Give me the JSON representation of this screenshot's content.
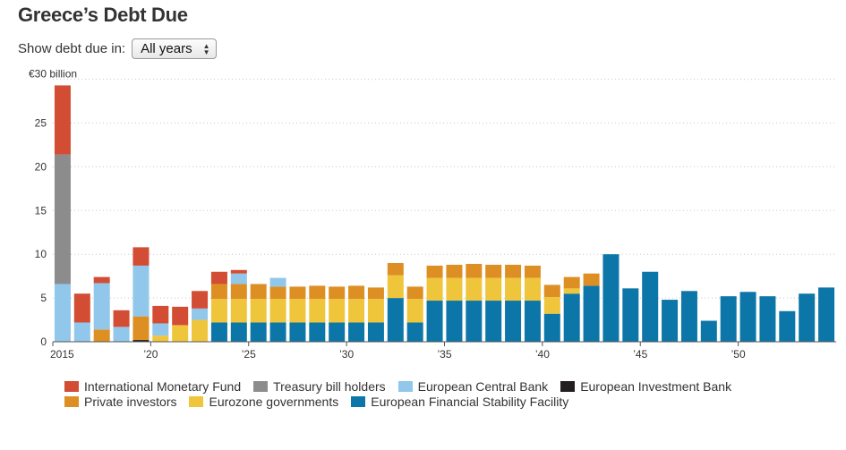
{
  "header": {
    "title": "Greece’s Debt Due"
  },
  "controls": {
    "label": "Show debt due in:",
    "selected": "All years"
  },
  "chart_data": {
    "type": "bar",
    "stacked": true,
    "title": "Greece’s Debt Due",
    "xlabel": "",
    "ylabel": "",
    "y_top_label": "€30 billion",
    "ylim": [
      0,
      30
    ],
    "yticks": [
      0,
      5,
      10,
      15,
      20,
      25
    ],
    "grid": true,
    "legend_position": "bottom",
    "x_tick_labels": [
      {
        "year": 2015,
        "label": "2015"
      },
      {
        "year": 2020,
        "label": "’20"
      },
      {
        "year": 2025,
        "label": "’25"
      },
      {
        "year": 2030,
        "label": "’30"
      },
      {
        "year": 2035,
        "label": "’35"
      },
      {
        "year": 2040,
        "label": "’40"
      },
      {
        "year": 2045,
        "label": "’45"
      },
      {
        "year": 2050,
        "label": "’50"
      }
    ],
    "categories": [
      2015,
      2016,
      2017,
      2018,
      2019,
      2020,
      2021,
      2022,
      2023,
      2024,
      2025,
      2026,
      2027,
      2028,
      2029,
      2030,
      2031,
      2032,
      2033,
      2034,
      2035,
      2036,
      2037,
      2038,
      2039,
      2040,
      2041,
      2042,
      2043,
      2044,
      2045,
      2046,
      2047,
      2048,
      2049,
      2050,
      2051,
      2052,
      2053,
      2054
    ],
    "series": [
      {
        "name": "European Financial Stability Facility",
        "color": "#0d76a8",
        "values": [
          0,
          0,
          0,
          0,
          0,
          0,
          0,
          0,
          2.2,
          2.2,
          2.2,
          2.2,
          2.2,
          2.2,
          2.2,
          2.2,
          2.2,
          5.0,
          2.2,
          4.7,
          4.7,
          4.7,
          4.7,
          4.7,
          4.7,
          3.2,
          5.5,
          6.4,
          10.0,
          6.1,
          8.0,
          4.8,
          5.8,
          2.4,
          5.2,
          5.7,
          5.2,
          3.5,
          5.5,
          6.2
        ]
      },
      {
        "name": "Eurozone governments",
        "color": "#efc53c",
        "values": [
          0,
          0,
          0,
          0,
          0,
          0.7,
          1.9,
          2.5,
          2.7,
          2.7,
          2.7,
          2.7,
          2.7,
          2.7,
          2.7,
          2.7,
          2.7,
          2.6,
          2.7,
          2.6,
          2.6,
          2.6,
          2.6,
          2.6,
          2.6,
          1.9,
          0.6,
          0,
          0,
          0,
          0,
          0,
          0,
          0,
          0,
          0,
          0,
          0,
          0,
          0
        ]
      },
      {
        "name": "European Investment Bank",
        "color": "#231f20",
        "values": [
          0,
          0,
          0,
          0,
          0.2,
          0,
          0,
          0,
          0,
          0,
          0,
          0,
          0,
          0,
          0,
          0,
          0,
          0,
          0,
          0,
          0,
          0,
          0,
          0,
          0,
          0,
          0,
          0,
          0,
          0,
          0,
          0,
          0,
          0,
          0,
          0,
          0,
          0,
          0,
          0
        ]
      },
      {
        "name": "Private investors",
        "color": "#dd8f23",
        "values": [
          0,
          0,
          1.4,
          0,
          2.7,
          0,
          0,
          0,
          1.7,
          1.7,
          1.7,
          1.4,
          1.4,
          1.5,
          1.4,
          1.5,
          1.3,
          1.4,
          1.4,
          1.4,
          1.5,
          1.6,
          1.5,
          1.5,
          1.4,
          1.4,
          1.3,
          1.4,
          0,
          0,
          0,
          0,
          0,
          0,
          0,
          0,
          0,
          0,
          0,
          0
        ]
      },
      {
        "name": "European Central Bank",
        "color": "#91c7ea",
        "values": [
          6.6,
          2.2,
          5.3,
          1.7,
          5.8,
          1.4,
          0,
          1.3,
          0,
          1.2,
          0,
          1.0,
          0,
          0,
          0,
          0,
          0,
          0,
          0,
          0,
          0,
          0,
          0,
          0,
          0,
          0,
          0,
          0,
          0,
          0,
          0,
          0,
          0,
          0,
          0,
          0,
          0,
          0,
          0,
          0
        ]
      },
      {
        "name": "Treasury bill holders",
        "color": "#8c8c8c",
        "values": [
          14.8,
          0,
          0,
          0,
          0,
          0,
          0,
          0,
          0,
          0,
          0,
          0,
          0,
          0,
          0,
          0,
          0,
          0,
          0,
          0,
          0,
          0,
          0,
          0,
          0,
          0,
          0,
          0,
          0,
          0,
          0,
          0,
          0,
          0,
          0,
          0,
          0,
          0,
          0,
          0
        ]
      },
      {
        "name": "International Monetary Fund",
        "color": "#d24d34",
        "values": [
          7.9,
          3.3,
          0.7,
          1.9,
          2.1,
          2.0,
          2.1,
          2.0,
          1.4,
          0.4,
          0,
          0,
          0,
          0,
          0,
          0,
          0,
          0,
          0,
          0,
          0,
          0,
          0,
          0,
          0,
          0,
          0,
          0,
          0,
          0,
          0,
          0,
          0,
          0,
          0,
          0,
          0,
          0,
          0,
          0
        ]
      }
    ],
    "legend_rows": [
      [
        "International Monetary Fund",
        "Treasury bill holders",
        "European Central Bank",
        "European Investment Bank"
      ],
      [
        "Private investors",
        "Eurozone governments",
        "European Financial Stability Facility"
      ]
    ]
  }
}
